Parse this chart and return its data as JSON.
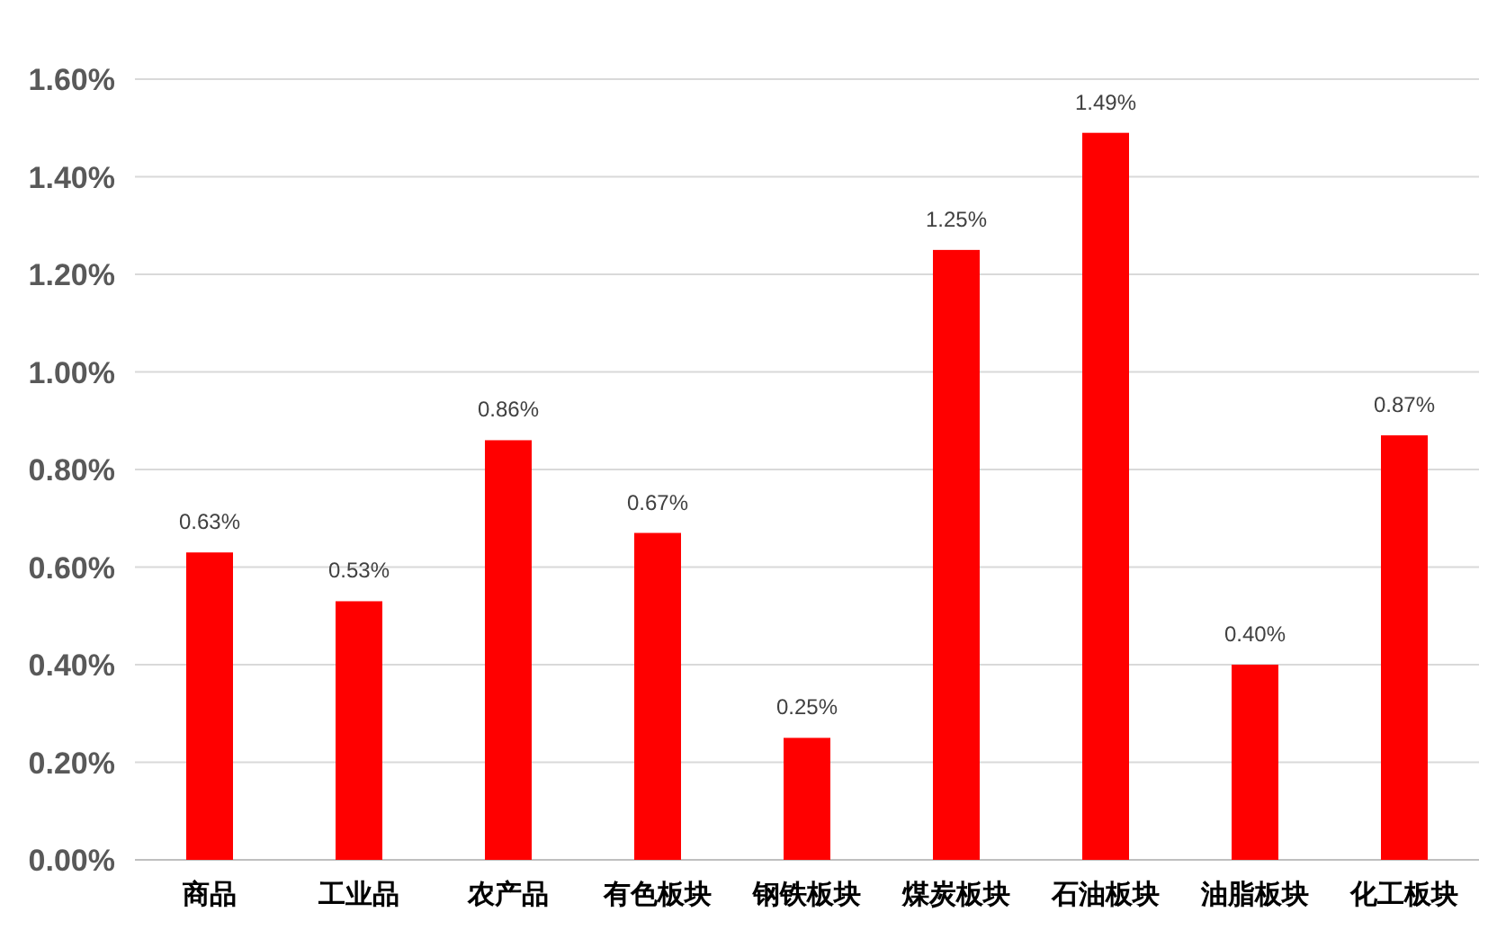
{
  "chart_data": {
    "type": "bar",
    "categories": [
      "商品",
      "工业品",
      "农产品",
      "有色板块",
      "钢铁板块",
      "煤炭板块",
      "石油板块",
      "油脂板块",
      "化工板块"
    ],
    "values": [
      0.63,
      0.53,
      0.86,
      0.67,
      0.25,
      1.25,
      1.49,
      0.4,
      0.87
    ],
    "value_labels": [
      "0.63%",
      "0.53%",
      "0.86%",
      "0.67%",
      "0.25%",
      "1.25%",
      "1.49%",
      "0.40%",
      "0.87%"
    ],
    "color": "#ff0000",
    "ylim": [
      0,
      1.6
    ],
    "yticks": [
      {
        "value": 0,
        "label": "0.00%"
      },
      {
        "value": 0.2,
        "label": "0.20%"
      },
      {
        "value": 0.4,
        "label": "0.40%"
      },
      {
        "value": 0.6,
        "label": "0.60%"
      },
      {
        "value": 0.8,
        "label": "0.80%"
      },
      {
        "value": 1.0,
        "label": "1.00%"
      },
      {
        "value": 1.2,
        "label": "1.20%"
      },
      {
        "value": 1.4,
        "label": "1.40%"
      },
      {
        "value": 1.6,
        "label": "1.60%"
      }
    ],
    "grid": "y"
  }
}
